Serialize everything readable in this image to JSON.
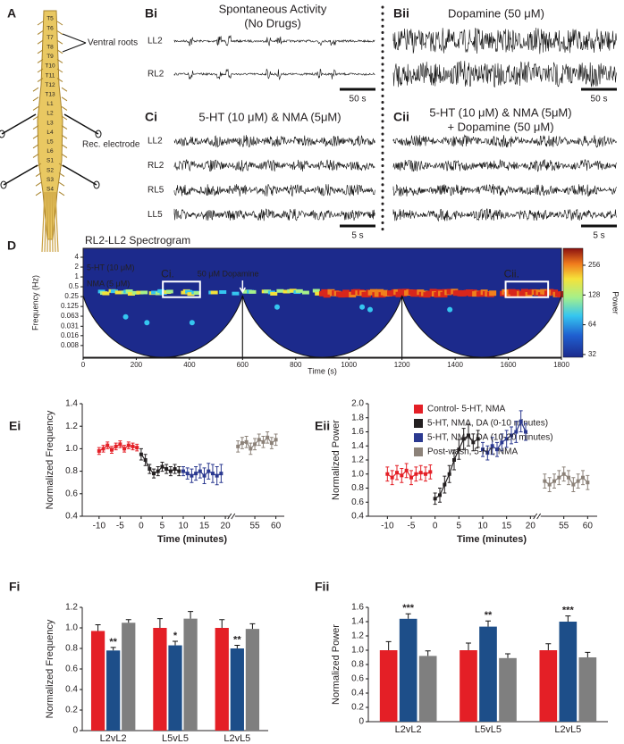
{
  "panel_a": {
    "label": "A",
    "vertebrae": [
      "T5",
      "T6",
      "T7",
      "T8",
      "T9",
      "T10",
      "T11",
      "T12",
      "T13",
      "L1",
      "L2",
      "L3",
      "L4",
      "L5",
      "L6",
      "S1",
      "S2",
      "S3",
      "S4"
    ],
    "ventral_roots": "Ventral roots",
    "rec_electrode": "Rec. electrode"
  },
  "panel_b": [
    {
      "label": "Bi",
      "title": [
        "Spontaneous Activity",
        "(No Drugs)"
      ],
      "traces": [
        "LL2",
        "RL2"
      ],
      "scale_bar": "50 s"
    },
    {
      "label": "Bii",
      "title": [
        "Dopamine (50 μM)"
      ],
      "scale_bar": "50 s"
    }
  ],
  "panel_c": [
    {
      "label": "Ci",
      "title": [
        "5-HT (10 μM) & NMA (5μM)"
      ],
      "traces": [
        "LL2",
        "RL2",
        "RL5",
        "LL5"
      ],
      "scale_bar": "5 s"
    },
    {
      "label": "Cii",
      "title": [
        "5-HT (10 μM) & NMA (5μM)",
        "+ Dopamine (50 μM)"
      ],
      "scale_bar": "5 s"
    }
  ],
  "panel_d": {
    "label": "D",
    "title": "RL2-LL2 Spectrogram",
    "xlabel": "Time (s)",
    "ylabel": "Frequency (Hz)",
    "xlim": [
      0,
      1800
    ],
    "xticks": [
      0,
      200,
      400,
      600,
      800,
      1000,
      1200,
      1400,
      1600,
      1800
    ],
    "ylim": [
      0.0035,
      7.5
    ],
    "log_y": true,
    "yticks": [
      4,
      2,
      1,
      0.5,
      0.25,
      0.125,
      0.063,
      0.031,
      0.016,
      0.008
    ],
    "colorbar": {
      "label": "Power",
      "lim": [
        30,
        380
      ],
      "log": true,
      "ticks": [
        32,
        64,
        128,
        256
      ]
    },
    "annotations": [
      "5-HT (10 μM)",
      "NMA (5 μM)",
      "50 μM Dopamine"
    ],
    "boxes": [
      "Ci.",
      "Cii."
    ]
  },
  "chart_data": [
    {
      "type": "line",
      "label": "Ei",
      "xlabel": "Time (minutes)",
      "ylabel": "Normalized Frequency",
      "xlim": [
        -14,
        62
      ],
      "xbreak": [
        21,
        49
      ],
      "xticks": [
        -10,
        -5,
        0,
        5,
        10,
        15,
        20,
        55,
        60
      ],
      "ylim": [
        0.4,
        1.4
      ],
      "yticks": [
        0.4,
        0.6,
        0.8,
        {
          "value": 1,
          "label": "1.0"
        },
        1.2,
        1.4
      ],
      "series": [
        {
          "color": "#e41f26",
          "x": [
            -10,
            -9,
            -8,
            -7,
            -6,
            -5,
            -4,
            -3,
            -2,
            -1
          ],
          "values": [
            0.98,
            1.0,
            1.03,
            0.99,
            1.02,
            1.04,
            1.0,
            1.03,
            1.02,
            1.01
          ],
          "errors": [
            0.03,
            0.03,
            0.03,
            0.03,
            0.03,
            0.03,
            0.03,
            0.03,
            0.03,
            0.03
          ]
        },
        {
          "color": "#231f20",
          "x": [
            0,
            1,
            2,
            3,
            4,
            5,
            6,
            7,
            8,
            9
          ],
          "values": [
            0.95,
            0.9,
            0.82,
            0.78,
            0.8,
            0.84,
            0.82,
            0.8,
            0.82,
            0.8
          ],
          "errors": [
            0.05,
            0.05,
            0.04,
            0.04,
            0.04,
            0.04,
            0.04,
            0.04,
            0.04,
            0.04
          ]
        },
        {
          "color": "#2b3990",
          "x": [
            10,
            11,
            12,
            13,
            14,
            15,
            16,
            17,
            18,
            19
          ],
          "values": [
            0.8,
            0.78,
            0.76,
            0.78,
            0.8,
            0.76,
            0.8,
            0.78,
            0.76,
            0.78
          ],
          "errors": [
            0.04,
            0.05,
            0.06,
            0.06,
            0.06,
            0.07,
            0.07,
            0.08,
            0.08,
            0.08
          ]
        },
        {
          "color": "#8c8279",
          "x": [
            51,
            52,
            53,
            54,
            55,
            56,
            57,
            58,
            59,
            60
          ],
          "values": [
            1.02,
            1.05,
            1.06,
            1.0,
            1.04,
            1.08,
            1.06,
            1.1,
            1.05,
            1.08
          ],
          "errors": [
            0.05,
            0.05,
            0.05,
            0.05,
            0.05,
            0.05,
            0.05,
            0.05,
            0.05,
            0.05
          ]
        }
      ]
    },
    {
      "type": "line",
      "label": "Eii",
      "xlabel": "Time (minutes)",
      "ylabel": "Normalized Power",
      "xlim": [
        -14,
        62
      ],
      "xbreak": [
        21,
        49
      ],
      "xticks": [
        -10,
        -5,
        0,
        5,
        10,
        15,
        20,
        55,
        60
      ],
      "ylim": [
        0.4,
        2.0
      ],
      "yticks": [
        0.4,
        0.6,
        0.8,
        {
          "value": 1,
          "label": "1.0"
        },
        1.2,
        1.4,
        1.6,
        1.8,
        {
          "value": 2,
          "label": "2.0"
        }
      ],
      "series": [
        {
          "name": "Control- 5-HT, NMA",
          "color": "#e41f26",
          "x": [
            -10,
            -9,
            -8,
            -7,
            -6,
            -5,
            -4,
            -3,
            -2,
            -1
          ],
          "values": [
            1.0,
            0.95,
            1.02,
            0.98,
            1.05,
            0.95,
            1.0,
            1.02,
            1.0,
            1.03
          ],
          "errors": [
            0.1,
            0.1,
            0.1,
            0.1,
            0.1,
            0.1,
            0.1,
            0.1,
            0.1,
            0.1
          ]
        },
        {
          "name": "5-HT, NMA, DA (0-10 minutes)",
          "color": "#231f20",
          "x": [
            0,
            1,
            2,
            3,
            4,
            5,
            6,
            7,
            8,
            9
          ],
          "values": [
            0.65,
            0.7,
            0.85,
            1.0,
            1.2,
            1.35,
            1.5,
            1.55,
            1.45,
            1.5
          ],
          "errors": [
            0.08,
            0.1,
            0.12,
            0.12,
            0.14,
            0.14,
            0.15,
            0.15,
            0.12,
            0.12
          ]
        },
        {
          "name": "5-HT, NMA, DA (10-20 minutes)",
          "color": "#2b3990",
          "x": [
            10,
            11,
            12,
            13,
            14,
            15,
            16,
            17,
            18,
            19
          ],
          "values": [
            1.35,
            1.3,
            1.4,
            1.35,
            1.45,
            1.5,
            1.55,
            1.6,
            1.75,
            1.6
          ],
          "errors": [
            0.1,
            0.1,
            0.12,
            0.1,
            0.12,
            0.12,
            0.12,
            0.15,
            0.15,
            0.12
          ]
        },
        {
          "name": "Post-wash, 5-HT, NMA",
          "color": "#8c8279",
          "x": [
            51,
            52,
            53,
            54,
            55,
            56,
            57,
            58,
            59,
            60
          ],
          "values": [
            0.9,
            0.85,
            0.9,
            0.95,
            1.0,
            0.95,
            0.85,
            0.9,
            0.95,
            0.88
          ],
          "errors": [
            0.1,
            0.1,
            0.1,
            0.1,
            0.1,
            0.1,
            0.1,
            0.1,
            0.1,
            0.1
          ]
        }
      ]
    },
    {
      "type": "bar",
      "label": "Fi",
      "ylabel": "Normalized Frequency",
      "categories": [
        "L2vL2",
        "L5vL5",
        "L2vL5"
      ],
      "ylim": [
        0,
        1.2
      ],
      "yticks": [
        0,
        0.2,
        0.4,
        0.6,
        0.8,
        {
          "value": 1,
          "label": "1.0"
        },
        1.2
      ],
      "series": [
        {
          "color": "#e41f26",
          "values": [
            0.97,
            1.0,
            1.0
          ],
          "errors": [
            0.06,
            0.09,
            0.08
          ]
        },
        {
          "color": "#1d4e89",
          "values": [
            0.78,
            0.83,
            0.8
          ],
          "errors": [
            0.03,
            0.04,
            0.03
          ],
          "significance": [
            "**",
            "*",
            "**"
          ]
        },
        {
          "color": "#7f7f7f",
          "values": [
            1.05,
            1.09,
            0.99
          ],
          "errors": [
            0.03,
            0.07,
            0.05
          ]
        }
      ]
    },
    {
      "type": "bar",
      "label": "Fii",
      "ylabel": "Normalized Power",
      "categories": [
        "L2vL2",
        "L5vL5",
        "L2vL5"
      ],
      "ylim": [
        0,
        1.6
      ],
      "yticks": [
        0,
        0.2,
        0.4,
        0.6,
        0.8,
        {
          "value": 1,
          "label": "1.0"
        },
        1.2,
        1.4,
        1.6
      ],
      "series": [
        {
          "color": "#e41f26",
          "values": [
            1.0,
            1.0,
            1.0
          ],
          "errors": [
            0.12,
            0.1,
            0.09
          ]
        },
        {
          "color": "#1d4e89",
          "values": [
            1.44,
            1.33,
            1.4
          ],
          "errors": [
            0.07,
            0.08,
            0.08
          ],
          "significance": [
            "***",
            "**",
            "***"
          ]
        },
        {
          "color": "#7f7f7f",
          "values": [
            0.92,
            0.89,
            0.9
          ],
          "errors": [
            0.07,
            0.06,
            0.07
          ]
        }
      ]
    }
  ]
}
